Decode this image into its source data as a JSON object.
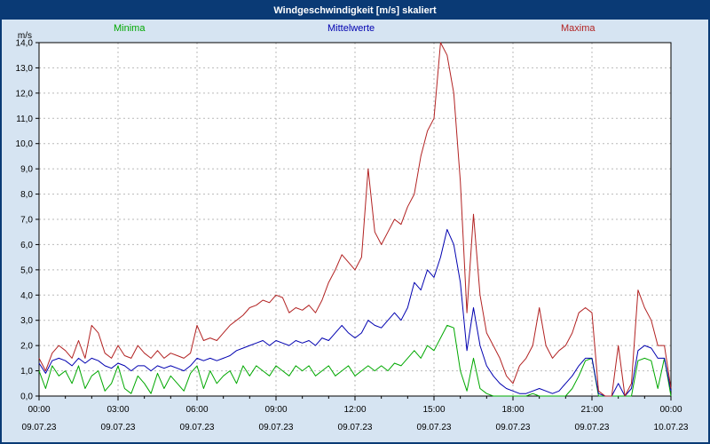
{
  "title_bar": {
    "title": "Windgeschwindigkeit [m/s] skaliert"
  },
  "colors": {
    "background": "#d6e4f2",
    "border": "#0a3a75",
    "title_bar": "#0a3a75",
    "plot_background": "#ffffff",
    "grid": "#b9b9b9",
    "axis": "#000000",
    "minima": "#00a800",
    "mittelwerte": "#0000b0",
    "maxima": "#b22222"
  },
  "legend": [
    {
      "label": "Minima",
      "color": "#00a800"
    },
    {
      "label": "Mittelwerte",
      "color": "#0000b0"
    },
    {
      "label": "Maxima",
      "color": "#b22222"
    }
  ],
  "axis": {
    "unit_label": "m/s",
    "y_tick_labels": [
      "0,0",
      "1,0",
      "2,0",
      "3,0",
      "4,0",
      "5,0",
      "6,0",
      "7,0",
      "8,0",
      "9,0",
      "10,0",
      "11,0",
      "12,0",
      "13,0",
      "14,0"
    ],
    "x_tick_labels": [
      "00:00",
      "03:00",
      "06:00",
      "09:00",
      "12:00",
      "15:00",
      "18:00",
      "21:00",
      "00:00"
    ],
    "date_labels": [
      "09.07.23",
      "09.07.23",
      "09.07.23",
      "09.07.23",
      "09.07.23",
      "09.07.23",
      "09.07.23",
      "09.07.23",
      "10.07.23"
    ]
  },
  "chart_data": {
    "type": "line",
    "title": "Windgeschwindigkeit [m/s] skaliert",
    "ylabel": "m/s",
    "ylim": [
      0,
      14
    ],
    "y_step": 1.0,
    "x_range_hours": [
      0,
      24
    ],
    "x_major_tick_hours": 3,
    "points_interval_minutes": 15,
    "grid": "dashed",
    "legend_position": "top",
    "series": [
      {
        "name": "Minima",
        "color": "#00a800",
        "values": [
          1.0,
          0.3,
          1.2,
          0.8,
          1.0,
          0.5,
          1.2,
          0.3,
          0.8,
          1.0,
          0.2,
          0.5,
          1.2,
          0.3,
          0.1,
          0.8,
          0.5,
          0.1,
          0.9,
          0.3,
          0.8,
          0.5,
          0.2,
          0.9,
          1.2,
          0.3,
          1.0,
          0.5,
          0.8,
          1.0,
          0.5,
          1.2,
          0.8,
          1.2,
          1.0,
          0.8,
          1.2,
          1.0,
          0.8,
          1.2,
          1.0,
          1.2,
          0.8,
          1.0,
          1.2,
          0.8,
          1.0,
          1.2,
          0.8,
          1.0,
          1.2,
          1.0,
          1.2,
          1.0,
          1.3,
          1.2,
          1.5,
          1.8,
          1.5,
          2.0,
          1.8,
          2.3,
          2.8,
          2.7,
          1.0,
          0.2,
          1.5,
          0.3,
          0.1,
          0.0,
          0.0,
          0.0,
          0.0,
          0.0,
          0.0,
          0.1,
          0.0,
          0.0,
          0.0,
          0.0,
          0.0,
          0.3,
          0.8,
          1.4,
          1.5,
          0.0,
          0.0,
          0.0,
          0.0,
          0.0,
          0.0,
          1.4,
          1.5,
          1.4,
          0.3,
          1.5,
          0.0
        ]
      },
      {
        "name": "Mittelwerte",
        "color": "#0000b0",
        "values": [
          1.3,
          0.9,
          1.4,
          1.5,
          1.4,
          1.2,
          1.5,
          1.3,
          1.5,
          1.4,
          1.2,
          1.1,
          1.3,
          1.2,
          1.0,
          1.2,
          1.2,
          1.0,
          1.2,
          1.1,
          1.2,
          1.1,
          1.0,
          1.2,
          1.5,
          1.4,
          1.5,
          1.4,
          1.5,
          1.6,
          1.8,
          1.9,
          2.0,
          2.1,
          2.2,
          2.0,
          2.2,
          2.1,
          2.0,
          2.2,
          2.1,
          2.2,
          2.0,
          2.3,
          2.2,
          2.5,
          2.8,
          2.5,
          2.3,
          2.5,
          3.0,
          2.8,
          2.7,
          3.0,
          3.3,
          3.0,
          3.5,
          4.5,
          4.2,
          5.0,
          4.7,
          5.5,
          6.6,
          6.0,
          4.5,
          1.8,
          3.5,
          2.0,
          1.2,
          0.8,
          0.5,
          0.3,
          0.2,
          0.1,
          0.1,
          0.2,
          0.3,
          0.2,
          0.1,
          0.2,
          0.5,
          0.8,
          1.2,
          1.5,
          1.5,
          0.1,
          0.0,
          0.0,
          0.5,
          0.0,
          0.3,
          1.8,
          2.0,
          1.9,
          1.5,
          1.5,
          0.2
        ]
      },
      {
        "name": "Maxima",
        "color": "#b22222",
        "values": [
          1.5,
          1.0,
          1.7,
          2.0,
          1.8,
          1.5,
          2.2,
          1.5,
          2.8,
          2.5,
          1.7,
          1.5,
          2.0,
          1.6,
          1.5,
          2.0,
          1.7,
          1.5,
          1.8,
          1.5,
          1.7,
          1.6,
          1.5,
          1.7,
          2.8,
          2.2,
          2.3,
          2.2,
          2.5,
          2.8,
          3.0,
          3.2,
          3.5,
          3.6,
          3.8,
          3.7,
          4.0,
          3.9,
          3.3,
          3.5,
          3.4,
          3.6,
          3.3,
          3.8,
          4.5,
          5.0,
          5.6,
          5.3,
          5.0,
          5.5,
          9.0,
          6.5,
          6.0,
          6.5,
          7.0,
          6.8,
          7.5,
          8.0,
          9.5,
          10.5,
          11.0,
          14.0,
          13.5,
          12.0,
          8.5,
          3.3,
          7.2,
          4.0,
          2.5,
          2.0,
          1.5,
          0.8,
          0.5,
          1.2,
          1.5,
          2.0,
          3.5,
          2.0,
          1.5,
          1.8,
          2.0,
          2.5,
          3.3,
          3.5,
          3.3,
          0.2,
          0.0,
          0.0,
          2.0,
          0.0,
          0.5,
          4.2,
          3.5,
          3.0,
          2.0,
          2.0,
          0.3
        ]
      }
    ]
  }
}
